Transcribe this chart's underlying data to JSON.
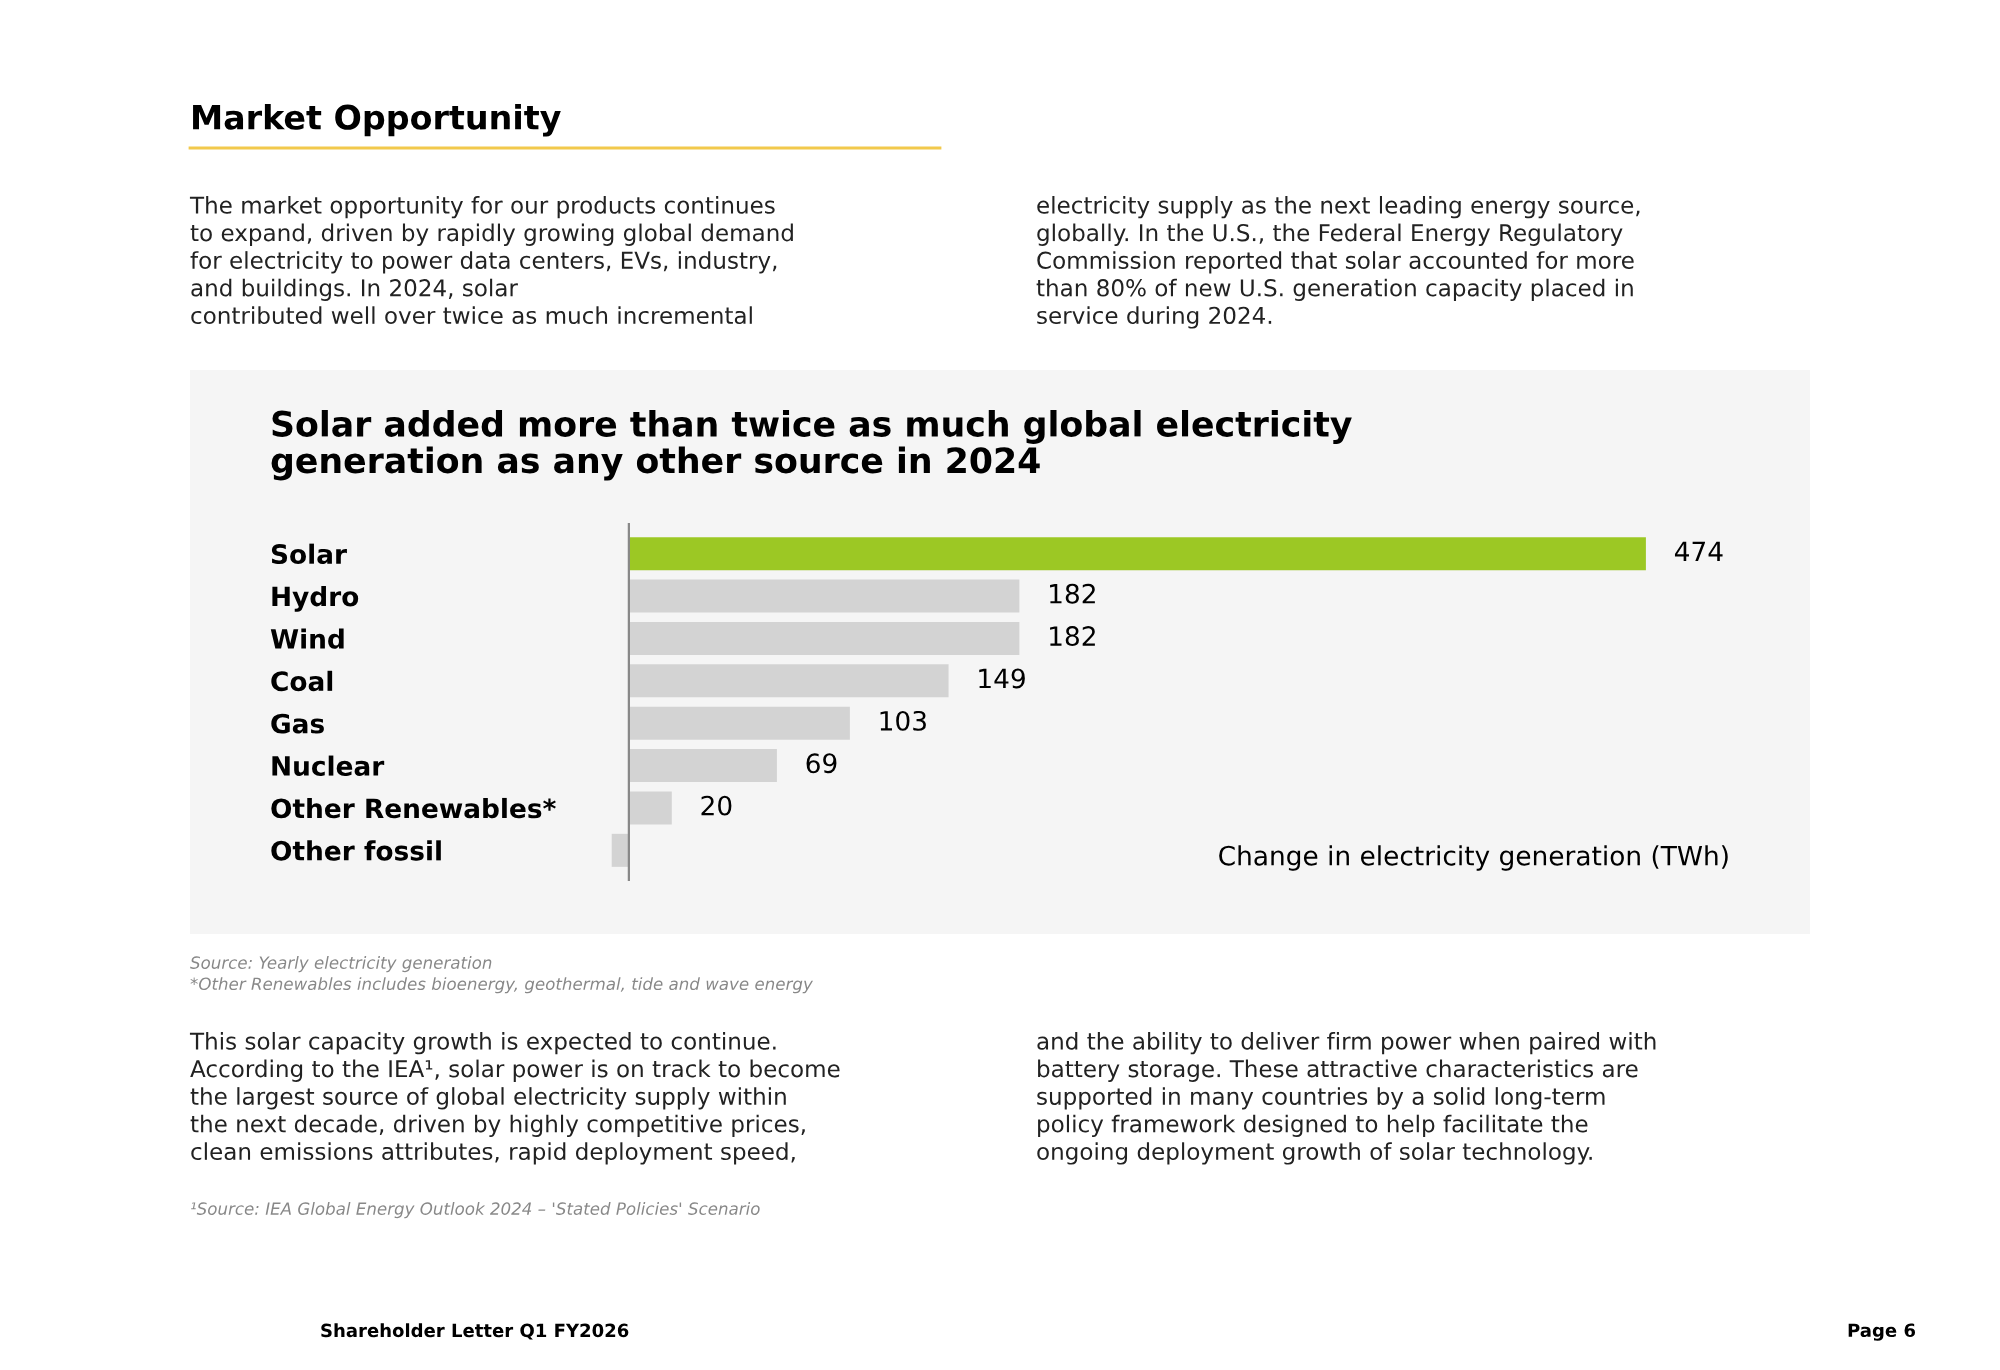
{
  "chart_data": {
    "type": "bar",
    "orientation": "horizontal",
    "title": "Solar added more than twice as much global electricity\ngeneration as any other source in 2024",
    "categories": [
      "Solar",
      "Hydro",
      "Wind",
      "Coal",
      "Gas",
      "Nuclear",
      "Other Renewables*",
      "Other fossil"
    ],
    "values": [
      474,
      182,
      182,
      149,
      103,
      69,
      20,
      -8
    ],
    "colors": [
      "#9cc824",
      "#d3d3d3",
      "#d3d3d3",
      "#d3d3d3",
      "#d3d3d3",
      "#d3d3d3",
      "#d3d3d3",
      "#d3d3d3"
    ],
    "value_labels": [
      "474",
      "182",
      "182",
      "149",
      "103",
      "69",
      "20",
      null
    ],
    "xlabel": "Change in electricity generation (TWh)",
    "annotations": [
      "Market Opportunity",
      "The market opportunity for our products continues\nto expand, driven by rapidly growing global demand\nfor electricity to power data centers, EVs, industry,\nand buildings. In 2024, solar\ncontributed well over twice as much incremental",
      "electricity supply as the next leading energy source,\nglobally. In the U.S., the Federal Energy Regulatory\nCommission reported that solar accounted for more\nthan 80% of new U.S. generation capacity placed in\nservice during 2024.",
      "Source: Yearly electricity generation\n*Other Renewables includes bioenergy, geothermal, tide and wave energy",
      "This solar capacity growth is expected to continue.\nAccording to the IEA¹, solar power is on track to become\nthe largest source of global electricity supply within\nthe next decade, driven by highly competitive prices,\nclean emissions attributes, rapid deployment speed,",
      "and the ability to deliver firm power when paired with\nbattery storage. These attractive characteristics are\nsupported in many countries by a solid long-term\npolicy framework designed to help facilitate the\nongoing deployment growth of solar technology.",
      "¹Source: IEA Global Energy Outlook 2024 – 'Stated Policies' Scenario",
      "Shareholder Letter Q1 FY2026",
      "Page 6"
    ]
  }
}
